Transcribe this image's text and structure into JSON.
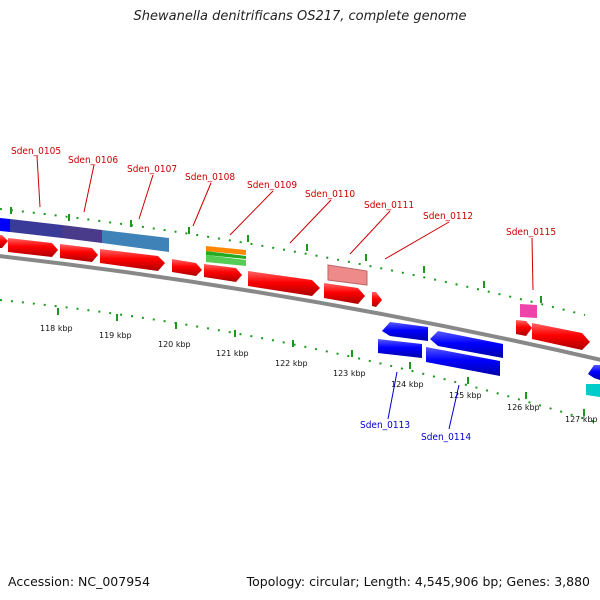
{
  "title": "Shewanella denitrificans OS217, complete genome",
  "footer": {
    "accession": "Accession: NC_007954",
    "summary": "Topology: circular; Length: 4,545,906 bp; Genes: 3,880"
  },
  "colors": {
    "backbone": "#808080",
    "forward_gene": "#ff0000",
    "reverse_gene": "#0000ff",
    "forward_label": "#cc0000",
    "reverse_label": "#0000cc",
    "tick_mark": "#008800"
  },
  "scale": {
    "unit": "kbp",
    "tick_labels": [
      "118 kbp",
      "119 kbp",
      "120 kbp",
      "121 kbp",
      "122 kbp",
      "123 kbp",
      "124 kbp",
      "125 kbp",
      "126 kbp",
      "127 kbp"
    ]
  },
  "genes": [
    {
      "id": "Sden_0105",
      "strand": "forward"
    },
    {
      "id": "Sden_0106",
      "strand": "forward"
    },
    {
      "id": "Sden_0107",
      "strand": "forward"
    },
    {
      "id": "Sden_0108",
      "strand": "forward"
    },
    {
      "id": "Sden_0109",
      "strand": "forward"
    },
    {
      "id": "Sden_0110",
      "strand": "forward"
    },
    {
      "id": "Sden_0111",
      "strand": "forward"
    },
    {
      "id": "Sden_0112",
      "strand": "forward"
    },
    {
      "id": "Sden_0115",
      "strand": "forward"
    },
    {
      "id": "Sden_0113",
      "strand": "reverse"
    },
    {
      "id": "Sden_0114",
      "strand": "reverse"
    }
  ]
}
